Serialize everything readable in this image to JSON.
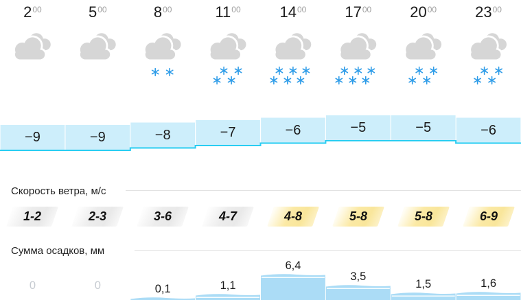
{
  "sections": {
    "wind_title": "Скорость ветра, м/с",
    "precip_title": "Сумма осадков, мм"
  },
  "columns": [
    {
      "time": "2",
      "time_sup": "00",
      "condition": "cloudy",
      "snowflakes": 0,
      "temperature": "−9",
      "temperature_value": -9,
      "wind": "1-2",
      "wind_tone": "gray",
      "precipitation": "0",
      "precipitation_mm": 0
    },
    {
      "time": "5",
      "time_sup": "00",
      "condition": "cloudy",
      "snowflakes": 0,
      "temperature": "−9",
      "temperature_value": -9,
      "wind": "2-3",
      "wind_tone": "gray",
      "precipitation": "0",
      "precipitation_mm": 0
    },
    {
      "time": "8",
      "time_sup": "00",
      "condition": "light-snow",
      "snowflakes": 2,
      "temperature": "−8",
      "temperature_value": -8,
      "wind": "3-6",
      "wind_tone": "gray",
      "precipitation": "0,1",
      "precipitation_mm": 0.1
    },
    {
      "time": "11",
      "time_sup": "00",
      "condition": "snow",
      "snowflakes": 4,
      "temperature": "−7",
      "temperature_value": -7,
      "wind": "4-7",
      "wind_tone": "gray",
      "precipitation": "1,1",
      "precipitation_mm": 1.1
    },
    {
      "time": "14",
      "time_sup": "00",
      "condition": "snow",
      "snowflakes": 6,
      "temperature": "−6",
      "temperature_value": -6,
      "wind": "4-8",
      "wind_tone": "yellow",
      "precipitation": "6,4",
      "precipitation_mm": 6.4
    },
    {
      "time": "17",
      "time_sup": "00",
      "condition": "snow",
      "snowflakes": 6,
      "temperature": "−5",
      "temperature_value": -5,
      "wind": "5-8",
      "wind_tone": "yellow",
      "precipitation": "3,5",
      "precipitation_mm": 3.5
    },
    {
      "time": "20",
      "time_sup": "00",
      "condition": "snow",
      "snowflakes": 4,
      "temperature": "−5",
      "temperature_value": -5,
      "wind": "5-8",
      "wind_tone": "yellow",
      "precipitation": "1,5",
      "precipitation_mm": 1.5
    },
    {
      "time": "23",
      "time_sup": "00",
      "condition": "snow",
      "snowflakes": 4,
      "temperature": "−6",
      "temperature_value": -6,
      "wind": "6-9",
      "wind_tone": "yellow",
      "precipitation": "1,6",
      "precipitation_mm": 1.6
    }
  ],
  "colors": {
    "temp_fill": "#cdeefb",
    "temp_line": "#29cdf2",
    "precip_bar": "#abdcf6",
    "snow_blue": "#2e9ce8",
    "cloud_gray": "#d6d6d6",
    "muted_text": "#9e9e9e",
    "divider": "#e2e2e2",
    "wind_yellow": "#fbe9a4",
    "wind_gray": "#ececec"
  },
  "chart_data": [
    {
      "type": "line",
      "title": "Температура, °C",
      "categories": [
        "2:00",
        "5:00",
        "8:00",
        "11:00",
        "14:00",
        "17:00",
        "20:00",
        "23:00"
      ],
      "values": [
        -9,
        -9,
        -8,
        -7,
        -6,
        -5,
        -5,
        -6
      ],
      "style": "stepped band, light-cyan fill with cyan bottom line, grid off, labels inside band"
    },
    {
      "type": "table",
      "title": "Скорость ветра, м/с",
      "categories": [
        "2:00",
        "5:00",
        "8:00",
        "11:00",
        "14:00",
        "17:00",
        "20:00",
        "23:00"
      ],
      "values": [
        "1-2",
        "2-3",
        "3-6",
        "4-7",
        "4-8",
        "5-8",
        "5-8",
        "6-9"
      ],
      "tones": [
        "gray",
        "gray",
        "gray",
        "gray",
        "yellow",
        "yellow",
        "yellow",
        "yellow"
      ]
    },
    {
      "type": "bar",
      "title": "Сумма осадков, мм",
      "categories": [
        "2:00",
        "5:00",
        "8:00",
        "11:00",
        "14:00",
        "17:00",
        "20:00",
        "23:00"
      ],
      "values": [
        0,
        0,
        0.1,
        1.1,
        6.4,
        3.5,
        1.5,
        1.6
      ],
      "labels": [
        "0",
        "0",
        "0,1",
        "1,1",
        "6,4",
        "3,5",
        "1,5",
        "1,6"
      ],
      "style": "light-blue stepped area with wavy top, value labels above bars, zeros grayed"
    }
  ]
}
